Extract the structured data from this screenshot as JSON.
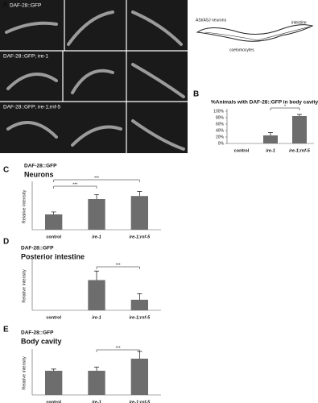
{
  "figure": {
    "panel_labels": [
      "A",
      "B",
      "C",
      "D",
      "E"
    ],
    "panel_a": {
      "rows": [
        "DAF-28::GFP",
        "DAF-28::GFP; ire-1",
        "DAF-28::GFP; ire-1;rnf-5"
      ],
      "diagram_labels": [
        "ASI/ASJ neurons",
        "intestine",
        "coelomocytes"
      ]
    }
  },
  "chart_data": [
    {
      "type": "bar",
      "title": "%Animals with DAF-28::GFP in body cavity",
      "categories": [
        "control",
        "ire-1",
        "ire-1;rnf-5"
      ],
      "values": [
        0,
        25,
        85
      ],
      "errors": [
        0,
        9,
        5
      ],
      "color": "#6d6d6d",
      "ylim": [
        0,
        100
      ],
      "yticks": [
        {
          "value": 0,
          "label": "0%"
        },
        {
          "value": 20,
          "label": "20%"
        },
        {
          "value": 40,
          "label": "40%"
        },
        {
          "value": 60,
          "label": "60%"
        },
        {
          "value": 80,
          "label": "80%"
        },
        {
          "value": 100,
          "label": "100%"
        }
      ],
      "annotations": [
        "*"
      ]
    },
    {
      "type": "bar",
      "title": "DAF-28::GFP",
      "subtitle": "Neurons",
      "ylabel": "Relative intensity",
      "categories": [
        "control",
        "ire-1",
        "ire-1;rnf-5"
      ],
      "values": [
        0.5,
        1.0,
        1.1
      ],
      "errors": [
        0.08,
        0.15,
        0.15
      ],
      "color": "#6d6d6d",
      "ylim": [
        0,
        1.5
      ],
      "yticks": [],
      "annotations": [
        "***",
        "***"
      ]
    },
    {
      "type": "bar",
      "title": "DAF-28::GFP",
      "subtitle": "Posterior intestine",
      "ylabel": "Relative intensity",
      "categories": [
        "control",
        "ire-1",
        "ire-1;rnf-5"
      ],
      "values": [
        0,
        1.0,
        0.35
      ],
      "errors": [
        0,
        0.3,
        0.2
      ],
      "color": "#6d6d6d",
      "ylim": [
        0,
        1.6
      ],
      "yticks": [],
      "annotations": [
        "***"
      ]
    },
    {
      "type": "bar",
      "title": "DAF-28::GFP",
      "subtitle": "Body cavity",
      "ylabel": "Relative intensity",
      "categories": [
        "control",
        "ire-1",
        "ire-1;rnf-5"
      ],
      "values": [
        1.0,
        1.0,
        1.5
      ],
      "errors": [
        0.07,
        0.15,
        0.3
      ],
      "color": "#6d6d6d",
      "ylim": [
        0,
        1.8
      ],
      "yticks": [],
      "annotations": [
        "***"
      ]
    }
  ]
}
